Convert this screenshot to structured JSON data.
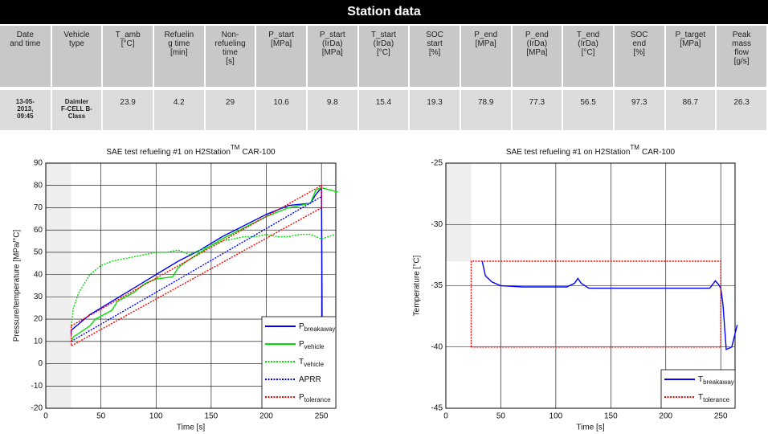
{
  "header": {
    "title": "Station data"
  },
  "table": {
    "columns": [
      "Date\nand time",
      "Vehicle\ntype",
      "T_amb\n[°C]",
      "Refuelin\ng time\n[min]",
      "Non-\nrefueling\ntime\n[s]",
      "P_start\n[MPa]",
      "P_start\n(IrDa)\n[MPa]",
      "T_start\n(IrDa)\n[°C]",
      "SOC\nstart\n[%]",
      "P_end\n[MPa]",
      "P_end\n(IrDa)\n[MPa]",
      "T_end\n(IrDa)\n[°C]",
      "SOC\nend\n[%]",
      "P_target\n[MPa]",
      "Peak\nmass\nflow\n[g/s]"
    ],
    "rows": [
      [
        "13-05-\n2013,\n09:45",
        "Daimler\nF-CELL B-\nClass",
        23.9,
        4.2,
        29,
        10.6,
        9.8,
        15.4,
        19.3,
        78.9,
        77.3,
        56.5,
        97.3,
        86.7,
        26.3
      ]
    ]
  },
  "chart_data": [
    {
      "type": "line",
      "title": "SAE test refueling #1 on H2Station",
      "title_sup": "TM",
      "title_end": "CAR-100",
      "x_label": "Time [s]",
      "y_label": "Pressure/temperature [MPa/°C]",
      "xlim": [
        0,
        263
      ],
      "xticks": [
        0,
        50,
        100,
        150,
        200,
        250
      ],
      "ylim": [
        -20,
        90
      ],
      "yticks": [
        -20,
        -10,
        0,
        10,
        20,
        30,
        40,
        50,
        60,
        70,
        80,
        90
      ],
      "grid": true,
      "shade_x": [
        0,
        23
      ],
      "shade_y": [
        -20,
        90
      ],
      "legend": "lower right",
      "series": [
        {
          "name": "P",
          "name_sub": "breakaway",
          "color": "#0000ff",
          "style": "solid",
          "x": [
            23,
            23,
            40,
            60,
            80,
            100,
            120,
            140,
            160,
            180,
            200,
            220,
            240,
            245,
            250,
            250,
            251
          ],
          "values": [
            13,
            15,
            22,
            28,
            34,
            40,
            46,
            51,
            57,
            62,
            67,
            71,
            72,
            76,
            79,
            79,
            -20
          ]
        },
        {
          "name": "P",
          "name_sub": "vehicle",
          "color": "#00dd00",
          "style": "solid",
          "x": [
            23,
            25,
            40,
            45,
            60,
            65,
            80,
            90,
            100,
            115,
            120,
            125,
            140,
            160,
            180,
            200,
            220,
            240,
            245,
            250,
            265
          ],
          "values": [
            10,
            12,
            17,
            20,
            24,
            28,
            32,
            36,
            38,
            39,
            43,
            45,
            50,
            56,
            61,
            66,
            70,
            72,
            78,
            79,
            77
          ]
        },
        {
          "name": "T",
          "name_sub": "vehicle",
          "color": "#00dd00",
          "style": "dotted",
          "x": [
            23,
            25,
            30,
            40,
            50,
            60,
            70,
            80,
            90,
            100,
            110,
            120,
            130,
            140,
            150,
            160,
            170,
            180,
            190,
            200,
            210,
            220,
            230,
            240,
            250,
            262
          ],
          "values": [
            17,
            25,
            32,
            40,
            44,
            46,
            47,
            48,
            49,
            50,
            50,
            51,
            49,
            51,
            53,
            55,
            56,
            57,
            57,
            58,
            57,
            57,
            58,
            58,
            56,
            58
          ]
        },
        {
          "name": "APRR",
          "color": "#0000ff",
          "style": "dotted",
          "x": [
            23,
            250
          ],
          "values": [
            10,
            75
          ]
        },
        {
          "name": "P",
          "name_sub": "tolerance",
          "color": "#ff0000",
          "style": "dotted",
          "x": [
            23,
            250,
            250,
            23,
            23
          ],
          "values": [
            17,
            80,
            70,
            8,
            17
          ]
        }
      ]
    },
    {
      "type": "line",
      "title": "SAE test refueling #1 on H2Station",
      "title_sup": "TM",
      "title_end": "CAR-100",
      "x_label": "Time [s]",
      "y_label": "Temperature [°C]",
      "xlim": [
        0,
        263
      ],
      "xticks": [
        0,
        50,
        100,
        150,
        200,
        250
      ],
      "ylim": [
        -45,
        -25
      ],
      "yticks": [
        -45,
        -40,
        -35,
        -30,
        -25
      ],
      "grid": true,
      "shade_x": [
        0,
        23
      ],
      "shade_y": [
        -33,
        -25
      ],
      "legend": "lower right",
      "series": [
        {
          "name": "T",
          "name_sub": "breakaway",
          "color": "#0000ff",
          "style": "solid",
          "x": [
            33,
            36,
            42,
            50,
            70,
            90,
            110,
            117,
            120,
            123,
            130,
            160,
            200,
            240,
            245,
            248,
            250,
            252,
            255,
            260,
            265
          ],
          "values": [
            -33,
            -34.2,
            -34.7,
            -35,
            -35.1,
            -35.1,
            -35.1,
            -34.8,
            -34.4,
            -34.8,
            -35.2,
            -35.2,
            -35.2,
            -35.2,
            -34.6,
            -34.9,
            -35.2,
            -36.5,
            -40.2,
            -40,
            -38.2
          ]
        },
        {
          "name": "T",
          "name_sub": "tolerance",
          "color": "#ff0000",
          "style": "dotted",
          "x": [
            23,
            23,
            250,
            250,
            23
          ],
          "values": [
            -40,
            -33,
            -33,
            -40,
            -40
          ]
        }
      ]
    }
  ]
}
